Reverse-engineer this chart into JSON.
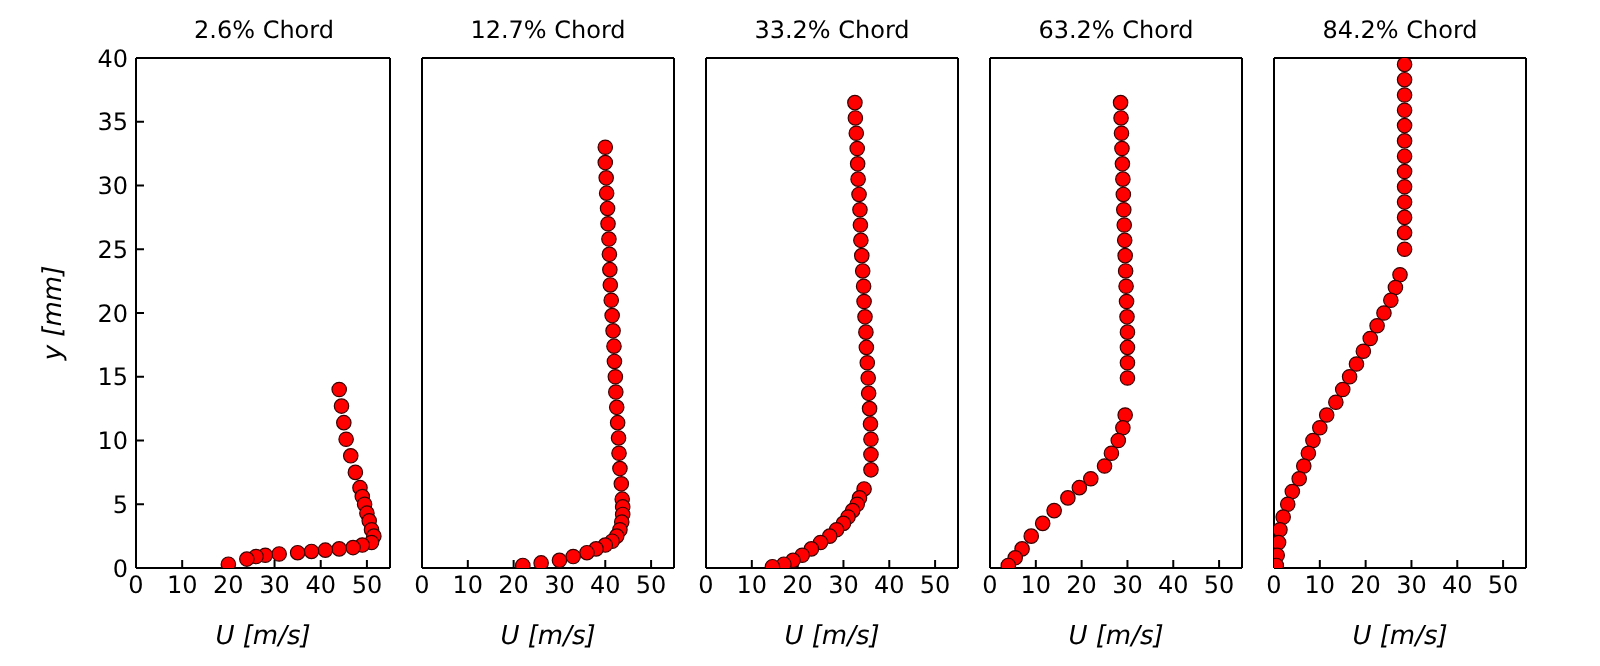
{
  "chart_data": [
    {
      "type": "scatter",
      "title": "2.6% Chord",
      "xlabel": "U  [m/s]",
      "ylabel": "y  [mm]",
      "xlim": [
        0,
        55
      ],
      "xticks": [
        0,
        10,
        20,
        30,
        40,
        50
      ],
      "ylim": [
        0,
        40
      ],
      "yticks": [
        0,
        5,
        10,
        15,
        20,
        25,
        30,
        35,
        40
      ],
      "marker": "circle",
      "series": [
        {
          "color": "#ff0000",
          "x": [
            44,
            44.5,
            45,
            45.5,
            46.5,
            47.5,
            48.5,
            49,
            49.5,
            50,
            50.5,
            51,
            51.5,
            51,
            49,
            47,
            44,
            41,
            38,
            35,
            31,
            28,
            26,
            24,
            22,
            21,
            20
          ],
          "values": [
            14,
            12.7,
            11.4,
            10.1,
            8.8,
            7.5,
            6.3,
            5.6,
            5,
            4.3,
            3.7,
            3,
            2.5,
            2,
            1.8,
            1.6,
            1.5,
            1.4,
            1.3,
            1.2,
            1.1,
            1,
            0.9,
            0.7,
            null,
            null,
            0.3
          ]
        }
      ]
    },
    {
      "type": "scatter",
      "title": "12.7% Chord",
      "xlabel": "U  [m/s]",
      "xlim": [
        0,
        55
      ],
      "xticks": [
        0,
        10,
        20,
        30,
        40,
        50
      ],
      "ylim": [
        0,
        40
      ],
      "yticks": [
        0,
        5,
        10,
        15,
        20,
        25,
        30,
        35,
        40
      ],
      "tick_labels": "x",
      "marker": "circle",
      "series": [
        {
          "color": "#ff0000",
          "x": [
            40,
            40,
            40.2,
            40.3,
            40.5,
            40.6,
            40.8,
            40.9,
            41,
            41.1,
            41.3,
            41.5,
            41.7,
            41.9,
            42,
            42.2,
            42.3,
            42.5,
            42.7,
            42.9,
            43,
            43.2,
            43.5,
            43.7,
            43.8,
            43.8,
            43.6,
            43.2,
            42.5,
            41.5,
            40,
            38,
            36,
            33,
            30,
            26,
            22
          ],
          "values": [
            33,
            31.8,
            30.6,
            29.4,
            28.2,
            27,
            25.8,
            24.6,
            23.4,
            22.2,
            21,
            19.8,
            18.6,
            17.4,
            16.2,
            15,
            13.8,
            12.6,
            11.4,
            10.2,
            9,
            7.8,
            6.6,
            5.4,
            4.8,
            4.2,
            3.6,
            3,
            2.5,
            2.1,
            1.8,
            1.5,
            1.2,
            0.9,
            0.6,
            0.4,
            0.2
          ]
        }
      ]
    },
    {
      "type": "scatter",
      "title": "33.2% Chord",
      "xlabel": "U  [m/s]",
      "xlim": [
        0,
        55
      ],
      "xticks": [
        0,
        10,
        20,
        30,
        40,
        50
      ],
      "ylim": [
        0,
        40
      ],
      "yticks": [
        0,
        5,
        10,
        15,
        20,
        25,
        30,
        35,
        40
      ],
      "tick_labels": "x",
      "marker": "circle",
      "series": [
        {
          "color": "#ff0000",
          "x": [
            32.5,
            32.6,
            32.8,
            33,
            33.1,
            33.2,
            33.4,
            33.6,
            33.7,
            33.8,
            34,
            34.2,
            34.4,
            34.5,
            34.7,
            34.9,
            35,
            35.2,
            35.4,
            35.5,
            35.7,
            35.9,
            36,
            36,
            36,
            34.5,
            33.5,
            33,
            32,
            31,
            30,
            28.5,
            27,
            25,
            23,
            21,
            19,
            17,
            14.5
          ],
          "values": [
            36.5,
            35.3,
            34.1,
            32.9,
            31.7,
            30.5,
            29.3,
            28.1,
            26.9,
            25.7,
            24.5,
            23.3,
            22.1,
            20.9,
            19.7,
            18.5,
            17.3,
            16.1,
            14.9,
            13.7,
            12.5,
            11.3,
            10.1,
            8.9,
            7.7,
            6.2,
            5.5,
            5,
            4.5,
            4,
            3.5,
            3,
            2.5,
            2,
            1.5,
            1,
            0.6,
            0.3,
            0.1
          ]
        }
      ]
    },
    {
      "type": "scatter",
      "title": "63.2% Chord",
      "xlabel": "U  [m/s]",
      "xlim": [
        0,
        55
      ],
      "xticks": [
        0,
        10,
        20,
        30,
        40,
        50
      ],
      "ylim": [
        0,
        40
      ],
      "yticks": [
        0,
        5,
        10,
        15,
        20,
        25,
        30,
        35,
        40
      ],
      "tick_labels": "x",
      "marker": "circle",
      "series": [
        {
          "color": "#ff0000",
          "x": [
            28.5,
            28.6,
            28.7,
            28.8,
            28.9,
            29,
            29.1,
            29.2,
            29.3,
            29.4,
            29.5,
            29.6,
            29.7,
            29.8,
            29.9,
            30,
            30,
            30,
            30,
            29.5,
            29,
            28,
            26.5,
            25,
            22,
            19.5,
            17,
            14,
            11.5,
            9,
            7,
            5.5,
            4
          ],
          "values": [
            36.5,
            35.3,
            34.1,
            32.9,
            31.7,
            30.5,
            29.3,
            28.1,
            26.9,
            25.7,
            24.5,
            23.3,
            22.1,
            20.9,
            19.7,
            18.5,
            17.3,
            16.1,
            14.9,
            12,
            11,
            10,
            9,
            8,
            7,
            6.3,
            5.5,
            4.5,
            3.5,
            2.5,
            1.5,
            0.8,
            0.2
          ]
        }
      ]
    },
    {
      "type": "scatter",
      "title": "84.2% Chord",
      "xlabel": "U  [m/s]",
      "xlim": [
        0,
        55
      ],
      "xticks": [
        0,
        10,
        20,
        30,
        40,
        50
      ],
      "ylim": [
        0,
        40
      ],
      "yticks": [
        0,
        5,
        10,
        15,
        20,
        25,
        30,
        35,
        40
      ],
      "tick_labels": "x",
      "marker": "circle",
      "series": [
        {
          "color": "#ff0000",
          "x": [
            28.5,
            28.5,
            28.5,
            28.5,
            28.5,
            28.5,
            28.5,
            28.5,
            28.5,
            28.5,
            28.5,
            28.5,
            28.5,
            27.5,
            26.5,
            25.5,
            24,
            22.5,
            21,
            19.5,
            18,
            16.5,
            15,
            13.5,
            11.5,
            10,
            8.5,
            7.5,
            6.5,
            5.5,
            4,
            3,
            2,
            1.3,
            1,
            0.7,
            0.5
          ],
          "values": [
            39.5,
            38.3,
            37.1,
            35.9,
            34.7,
            33.5,
            32.3,
            31.1,
            29.9,
            28.7,
            27.5,
            26.3,
            25,
            23,
            22,
            21,
            20,
            19,
            18,
            17,
            16,
            15,
            14,
            13,
            12,
            11,
            10,
            9,
            8,
            7,
            6,
            5,
            4,
            3,
            2,
            1,
            0.2
          ]
        }
      ]
    }
  ]
}
